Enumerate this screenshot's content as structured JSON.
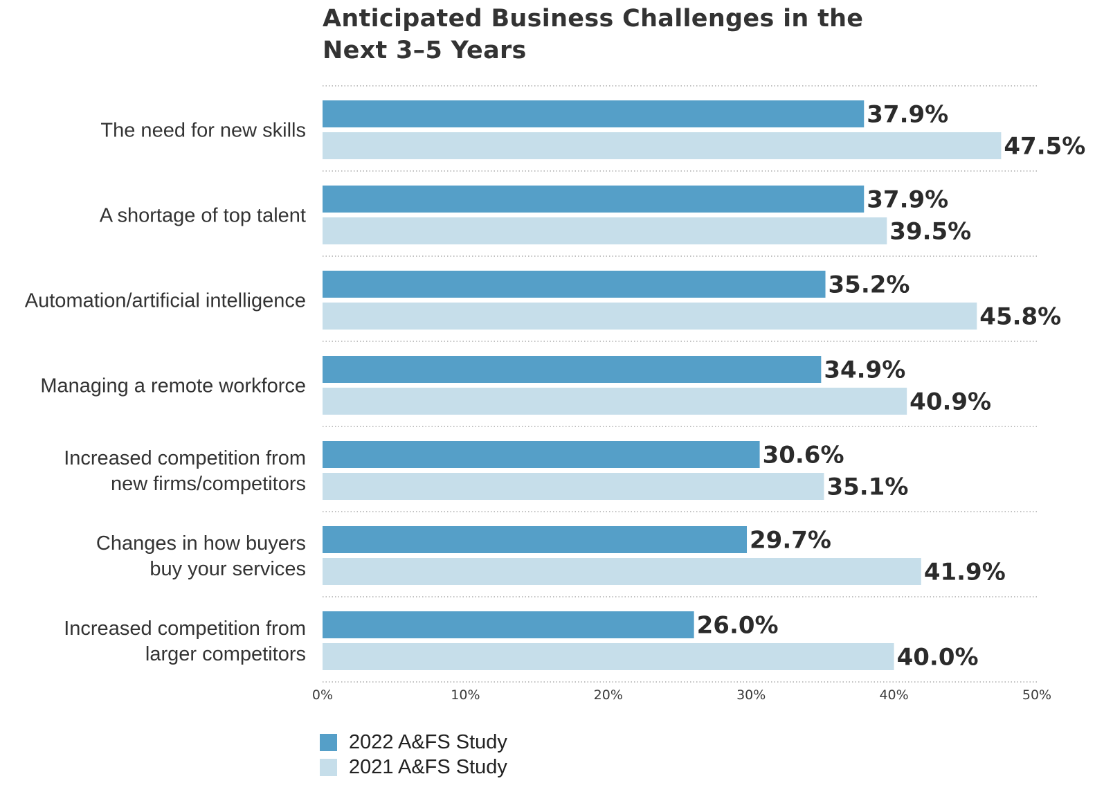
{
  "chart_data": {
    "type": "bar",
    "orientation": "horizontal",
    "title_lines": [
      "Anticipated Business Challenges in the",
      "Next 3–5 Years"
    ],
    "categories": [
      [
        "The need for new skills"
      ],
      [
        "A shortage of top talent"
      ],
      [
        "Automation/artificial intelligence"
      ],
      [
        "Managing a remote workforce"
      ],
      [
        "Increased competition from",
        "new firms/competitors"
      ],
      [
        "Changes in how buyers",
        "buy your services"
      ],
      [
        "Increased competition from",
        "larger competitors"
      ]
    ],
    "series": [
      {
        "name": "2022 A&FS Study",
        "color": "#559fc8",
        "values": [
          37.9,
          37.9,
          35.2,
          34.9,
          30.6,
          29.7,
          26.0
        ],
        "labels": [
          "37.9%",
          "37.9%",
          "35.2%",
          "34.9%",
          "30.6%",
          "29.7%",
          "26.0%"
        ]
      },
      {
        "name": "2021 A&FS Study",
        "color": "#c6deea",
        "values": [
          47.5,
          39.5,
          45.8,
          40.9,
          35.1,
          41.9,
          40.0
        ],
        "labels": [
          "47.5%",
          "39.5%",
          "45.8%",
          "40.9%",
          "35.1%",
          "41.9%",
          "40.0%"
        ]
      }
    ],
    "xlim": [
      0,
      50
    ],
    "x_ticks": [
      "0%",
      "10%",
      "20%",
      "30%",
      "40%",
      "50%"
    ],
    "grid": "dotted separators between categories",
    "legend_position": "bottom-left"
  }
}
